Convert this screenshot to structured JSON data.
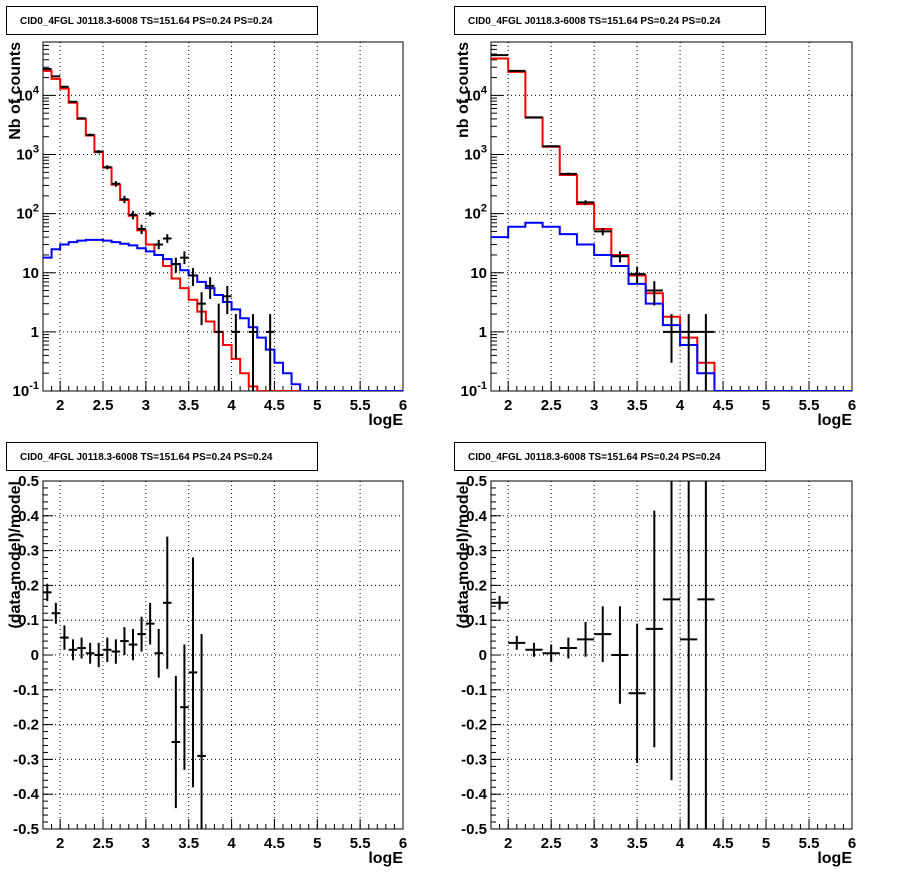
{
  "colors": {
    "model_total": "#ff0000",
    "background": "#0000ff",
    "data": "#000000",
    "grid": "#000000"
  },
  "chart_data": [
    {
      "type": "line",
      "title": "CID0_4FGL J0118.3-6008 TS=151.64 PS=0.24 PS=0.24",
      "xlabel": "logE",
      "ylabel": "Nb of counts",
      "yscale": "log",
      "xlim": [
        1.8,
        6.0
      ],
      "ylim": [
        0.1,
        80000
      ],
      "xticks": [
        "2",
        "2.5",
        "3",
        "3.5",
        "4",
        "4.5",
        "5",
        "5.5",
        "6"
      ],
      "yticks": [
        "10^-1",
        "1",
        "10",
        "10^2",
        "10^3",
        "10^4"
      ],
      "grid": true,
      "legend": "none",
      "bin_edges": [
        1.8,
        1.9,
        2.0,
        2.1,
        2.2,
        2.3,
        2.4,
        2.5,
        2.6,
        2.7,
        2.8,
        2.9,
        3.0,
        3.1,
        3.2,
        3.3,
        3.4,
        3.5,
        3.6,
        3.7,
        3.8,
        3.9,
        4.0,
        4.1,
        4.2,
        4.3,
        4.4,
        4.5,
        4.6,
        4.7,
        4.8,
        4.9,
        5.0,
        5.1,
        5.2,
        5.3,
        5.4,
        5.5,
        5.6,
        5.7,
        5.8,
        5.9,
        6.0
      ],
      "series": [
        {
          "values": [
            26000,
            19000,
            13000,
            7500,
            4000,
            2100,
            1100,
            600,
            310,
            170,
            92,
            52,
            30,
            20,
            13,
            8,
            5.5,
            3.5,
            2.2,
            1.5,
            1.0,
            0.6,
            0.35,
            0.2,
            0.12,
            0.1,
            0.1,
            0.1,
            0.1,
            0.1,
            0.1,
            0.1,
            0.1,
            0.1,
            0.1,
            0.1,
            0.1,
            0.1,
            0.1,
            0.1,
            0.1,
            0.1
          ]
        },
        {
          "values": [
            18,
            25,
            30,
            33,
            35,
            36,
            36,
            35,
            33,
            31,
            29,
            26,
            23,
            20,
            17,
            14,
            11,
            9,
            7,
            5.5,
            4.2,
            3.2,
            2.4,
            1.7,
            1.2,
            0.8,
            0.5,
            0.3,
            0.2,
            0.13,
            0.1,
            0.1,
            0.1,
            0.1,
            0.1,
            0.1,
            0.1,
            0.1,
            0.1,
            0.1,
            0.1,
            0.1
          ]
        }
      ],
      "points": [
        {
          "x": 1.85,
          "y": 28000,
          "ylo": 27500,
          "yhi": 28500
        },
        {
          "x": 1.95,
          "y": 21000,
          "ylo": 20500,
          "yhi": 21500
        },
        {
          "x": 2.05,
          "y": 14000,
          "ylo": 13600,
          "yhi": 14400
        },
        {
          "x": 2.15,
          "y": 7800,
          "ylo": 7600,
          "yhi": 8000
        },
        {
          "x": 2.25,
          "y": 4100,
          "ylo": 3950,
          "yhi": 4250
        },
        {
          "x": 2.35,
          "y": 2150,
          "ylo": 2050,
          "yhi": 2250
        },
        {
          "x": 2.45,
          "y": 1120,
          "ylo": 1050,
          "yhi": 1190
        },
        {
          "x": 2.55,
          "y": 610,
          "ylo": 560,
          "yhi": 660
        },
        {
          "x": 2.65,
          "y": 320,
          "ylo": 285,
          "yhi": 355
        },
        {
          "x": 2.75,
          "y": 175,
          "ylo": 150,
          "yhi": 200
        },
        {
          "x": 2.85,
          "y": 95,
          "ylo": 80,
          "yhi": 110
        },
        {
          "x": 2.95,
          "y": 55,
          "ylo": 45,
          "yhi": 65
        },
        {
          "x": 3.05,
          "y": 100,
          "ylo": 90,
          "yhi": 110
        },
        {
          "x": 3.15,
          "y": 30,
          "ylo": 25,
          "yhi": 36
        },
        {
          "x": 3.25,
          "y": 38,
          "ylo": 32,
          "yhi": 45
        },
        {
          "x": 3.35,
          "y": 14,
          "ylo": 10,
          "yhi": 18
        },
        {
          "x": 3.45,
          "y": 18,
          "ylo": 14,
          "yhi": 23
        },
        {
          "x": 3.55,
          "y": 9,
          "ylo": 6,
          "yhi": 12
        },
        {
          "x": 3.65,
          "y": 3,
          "ylo": 1.3,
          "yhi": 4.7
        },
        {
          "x": 3.75,
          "y": 6,
          "ylo": 3.6,
          "yhi": 8.4
        },
        {
          "x": 3.85,
          "y": 1,
          "ylo": 0.1,
          "yhi": 3
        },
        {
          "x": 3.95,
          "y": 4,
          "ylo": 2,
          "yhi": 6
        },
        {
          "x": 4.05,
          "y": 1,
          "ylo": 0.35,
          "yhi": 2
        },
        {
          "x": 4.25,
          "y": 1,
          "ylo": 0.1,
          "yhi": 2
        },
        {
          "x": 4.45,
          "y": 1,
          "ylo": 0.1,
          "yhi": 2
        }
      ]
    },
    {
      "type": "line",
      "title": "CID0_4FGL J0118.3-6008 TS=151.64 PS=0.24 PS=0.24",
      "xlabel": "logE",
      "ylabel": "nb of counts",
      "yscale": "log",
      "xlim": [
        1.8,
        6.0
      ],
      "ylim": [
        0.1,
        80000
      ],
      "xticks": [
        "2",
        "2.5",
        "3",
        "3.5",
        "4",
        "4.5",
        "5",
        "5.5",
        "6"
      ],
      "yticks": [
        "10^-1",
        "1",
        "10",
        "10^2",
        "10^3",
        "10^4"
      ],
      "grid": true,
      "legend": "none",
      "bin_edges": [
        1.8,
        2.0,
        2.2,
        2.4,
        2.6,
        2.8,
        3.0,
        3.2,
        3.4,
        3.6,
        3.8,
        4.0,
        4.2,
        4.4,
        4.6,
        4.8,
        5.0,
        5.2,
        5.4,
        5.6,
        5.8,
        6.0
      ],
      "series": [
        {
          "values": [
            42000,
            25000,
            4200,
            1350,
            450,
            145,
            55,
            20,
            9,
            4.5,
            1.8,
            0.8,
            0.3,
            0.1,
            0.1,
            0.1,
            0.1,
            0.1,
            0.1,
            0.1,
            0.1
          ]
        },
        {
          "values": [
            40,
            60,
            70,
            60,
            45,
            30,
            20,
            13,
            6.5,
            3,
            1.3,
            0.6,
            0.2,
            0.1,
            0.1,
            0.1,
            0.1,
            0.1,
            0.1,
            0.1,
            0.1
          ]
        }
      ],
      "points": [
        {
          "x": 1.9,
          "y": 48000,
          "ylo": 47500,
          "yhi": 48500
        },
        {
          "x": 2.1,
          "y": 26000,
          "ylo": 25700,
          "yhi": 26300
        },
        {
          "x": 2.3,
          "y": 4250,
          "ylo": 4150,
          "yhi": 4350
        },
        {
          "x": 2.5,
          "y": 1380,
          "ylo": 1330,
          "yhi": 1430
        },
        {
          "x": 2.7,
          "y": 470,
          "ylo": 445,
          "yhi": 495
        },
        {
          "x": 2.9,
          "y": 155,
          "ylo": 142,
          "yhi": 168
        },
        {
          "x": 3.1,
          "y": 50,
          "ylo": 43,
          "yhi": 57
        },
        {
          "x": 3.3,
          "y": 19,
          "ylo": 15,
          "yhi": 23
        },
        {
          "x": 3.5,
          "y": 9.5,
          "ylo": 6.5,
          "yhi": 12.5
        },
        {
          "x": 3.7,
          "y": 5,
          "ylo": 2.8,
          "yhi": 7.2
        },
        {
          "x": 3.9,
          "y": 1,
          "ylo": 0.3,
          "yhi": 2
        },
        {
          "x": 4.1,
          "y": 1,
          "ylo": 0.1,
          "yhi": 2
        },
        {
          "x": 4.3,
          "y": 1,
          "ylo": 0.1,
          "yhi": 2
        }
      ]
    },
    {
      "type": "scatter",
      "title": "CID0_4FGL J0118.3-6008 TS=151.64 PS=0.24 PS=0.24",
      "xlabel": "logE",
      "ylabel": "(data-model)/model",
      "yscale": "linear",
      "xlim": [
        1.8,
        6.0
      ],
      "ylim": [
        -0.5,
        0.5
      ],
      "xticks": [
        "2",
        "2.5",
        "3",
        "3.5",
        "4",
        "4.5",
        "5",
        "5.5",
        "6"
      ],
      "yticks": [
        "-0.5",
        "-0.4",
        "-0.3",
        "-0.2",
        "-0.1",
        "0",
        "0.1",
        "0.2",
        "0.3",
        "0.4",
        "0.5"
      ],
      "grid": true,
      "legend": "none",
      "bin_halfwidth": 0.05,
      "points": [
        {
          "x": 1.85,
          "y": 0.18,
          "err": 0.025
        },
        {
          "x": 1.95,
          "y": 0.12,
          "err": 0.03
        },
        {
          "x": 2.05,
          "y": 0.05,
          "err": 0.035
        },
        {
          "x": 2.15,
          "y": 0.015,
          "err": 0.03
        },
        {
          "x": 2.25,
          "y": 0.02,
          "err": 0.03
        },
        {
          "x": 2.35,
          "y": 0.005,
          "err": 0.03
        },
        {
          "x": 2.45,
          "y": 0.0,
          "err": 0.035
        },
        {
          "x": 2.55,
          "y": 0.015,
          "err": 0.035
        },
        {
          "x": 2.65,
          "y": 0.01,
          "err": 0.035
        },
        {
          "x": 2.75,
          "y": 0.04,
          "err": 0.04
        },
        {
          "x": 2.85,
          "y": 0.03,
          "err": 0.045
        },
        {
          "x": 2.95,
          "y": 0.06,
          "err": 0.05
        },
        {
          "x": 3.05,
          "y": 0.09,
          "err": 0.06
        },
        {
          "x": 3.15,
          "y": 0.005,
          "err": 0.07
        },
        {
          "x": 3.25,
          "y": 0.15,
          "err": 0.19
        },
        {
          "x": 3.35,
          "y": -0.25,
          "err": 0.19
        },
        {
          "x": 3.45,
          "y": -0.15,
          "err": 0.18
        },
        {
          "x": 3.55,
          "y": -0.05,
          "err": 0.33
        },
        {
          "x": 3.65,
          "y": -0.29,
          "err": 0.35
        }
      ]
    },
    {
      "type": "scatter",
      "title": "CID0_4FGL J0118.3-6008 TS=151.64 PS=0.24 PS=0.24",
      "xlabel": "logE",
      "ylabel": "(data-model)/model",
      "yscale": "linear",
      "xlim": [
        1.8,
        6.0
      ],
      "ylim": [
        -0.5,
        0.5
      ],
      "xticks": [
        "2",
        "2.5",
        "3",
        "3.5",
        "4",
        "4.5",
        "5",
        "5.5",
        "6"
      ],
      "yticks": [
        "-0.5",
        "-0.4",
        "-0.3",
        "-0.2",
        "-0.1",
        "0",
        "0.1",
        "0.2",
        "0.3",
        "0.4",
        "0.5"
      ],
      "grid": true,
      "legend": "none",
      "bin_halfwidth": 0.1,
      "points": [
        {
          "x": 1.9,
          "y": 0.15,
          "err": 0.02
        },
        {
          "x": 2.1,
          "y": 0.035,
          "err": 0.02
        },
        {
          "x": 2.3,
          "y": 0.015,
          "err": 0.02
        },
        {
          "x": 2.5,
          "y": 0.005,
          "err": 0.025
        },
        {
          "x": 2.7,
          "y": 0.02,
          "err": 0.03
        },
        {
          "x": 2.9,
          "y": 0.045,
          "err": 0.05
        },
        {
          "x": 3.1,
          "y": 0.06,
          "err": 0.08
        },
        {
          "x": 3.3,
          "y": 0.0,
          "err": 0.14
        },
        {
          "x": 3.5,
          "y": -0.11,
          "err": 0.2
        },
        {
          "x": 3.7,
          "y": 0.075,
          "err": 0.34
        },
        {
          "x": 3.9,
          "y": 0.16,
          "err": 0.52
        },
        {
          "x": 4.1,
          "y": 0.045,
          "err": 0.85
        },
        {
          "x": 4.3,
          "y": 0.16,
          "err": 0.9
        }
      ]
    }
  ]
}
